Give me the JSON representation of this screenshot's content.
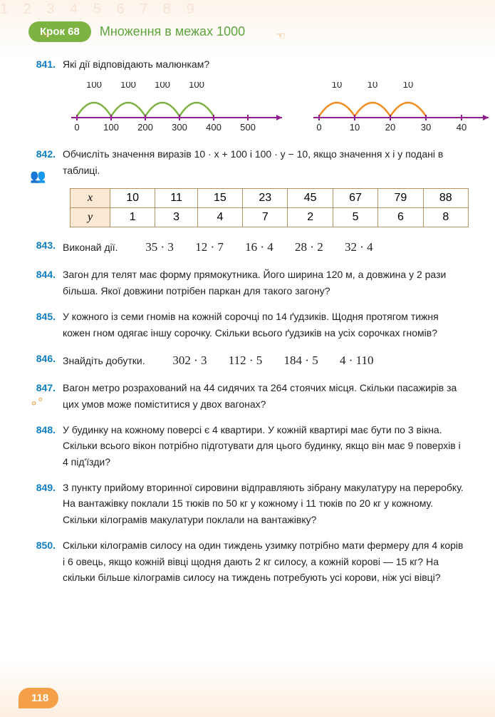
{
  "header": {
    "step_badge": "Крок 68",
    "step_title": "Множення в межах 1000"
  },
  "problems": {
    "p841": {
      "num": "841.",
      "text": "Які дії відповідають малюнкам?"
    },
    "p842": {
      "num": "842.",
      "text": "Обчисліть значення виразів 10 · x + 100 і 100 · y − 10, якщо значення x і y подані в таблиці."
    },
    "p843": {
      "num": "843.",
      "label": "Виконай дії.",
      "e1": "35 · 3",
      "e2": "12 · 7",
      "e3": "16 · 4",
      "e4": "28 · 2",
      "e5": "32 · 4"
    },
    "p844": {
      "num": "844.",
      "text": "Загон для телят має форму прямокутника. Його ширина 120 м, а довжина у 2 рази більша. Якої довжини потрібен паркан для такого загону?"
    },
    "p845": {
      "num": "845.",
      "text": "У кожного із семи гномів на кожній сорочці по 14 ґудзиків. Щодня протягом тижня кожен гном одягає іншу сорочку. Скільки всього ґудзиків на усіх сорочках гномів?"
    },
    "p846": {
      "num": "846.",
      "label": "Знайдіть добутки.",
      "e1": "302 · 3",
      "e2": "112 · 5",
      "e3": "184 · 5",
      "e4": "4 · 110"
    },
    "p847": {
      "num": "847.",
      "text": "Вагон метро розрахований на 44 сидячих та 264 стоячих місця. Скільки пасажирів за цих умов може поміститися у двох вагонах?"
    },
    "p848": {
      "num": "848.",
      "text": "У будинку на кожному поверсі є 4 квартири. У кожній квартирі має бути по 3 вікна. Скільки всього вікон потрібно підготувати для цього будинку, якщо він має 9 поверхів і 4 під'їзди?"
    },
    "p849": {
      "num": "849.",
      "text": "З пункту прийому вторинної сировини відправляють зібрану макулатуру на переробку. На вантажівку поклали 15 тюків по 50 кг у кожному і 11 тюків по 20 кг у кожному. Скільки кілограмів макулатури поклали на вантажівку?"
    },
    "p850": {
      "num": "850.",
      "text": "Скільки кілограмів силосу на один тиждень узимку потрібно мати фермеру для 4 корів і 6 овець, якщо кожній вівці щодня дають 2 кг силосу, а кожній корові — 15 кг? На скільки більше кілограмів силосу на тиждень потребують усі корови, ніж усі вівці?"
    }
  },
  "diagram1": {
    "hops": [
      "100",
      "100",
      "100",
      "100"
    ],
    "ticks": [
      "0",
      "100",
      "200",
      "300",
      "400",
      "500"
    ],
    "arc_color": "#7cb342",
    "axis_color": "#8e1e8e"
  },
  "diagram2": {
    "hops": [
      "10",
      "10",
      "10"
    ],
    "ticks": [
      "0",
      "10",
      "20",
      "30",
      "40"
    ],
    "arc_color": "#f28c1e",
    "axis_color": "#8e1e8e"
  },
  "table": {
    "row1_hdr": "x",
    "row2_hdr": "y",
    "x": [
      "10",
      "11",
      "15",
      "23",
      "45",
      "67",
      "79",
      "88"
    ],
    "y": [
      "1",
      "3",
      "4",
      "7",
      "2",
      "5",
      "6",
      "8"
    ]
  },
  "page_number": "118"
}
